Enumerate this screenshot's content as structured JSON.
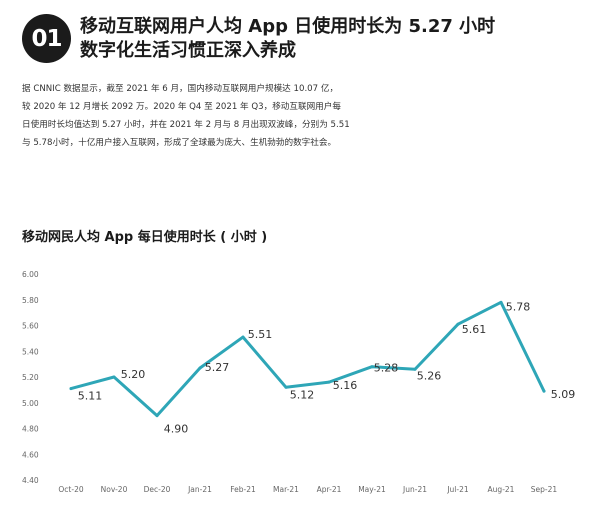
{
  "section": {
    "number": "01",
    "headline_line1": "移动互联网用户人均 App 日使用时长为 5.27 小时",
    "headline_line2": "数字化生活习惯正深入养成"
  },
  "paragraph": {
    "lines": [
      "据 CNNIC 数据显示，截至 2021 年 6 月，国内移动互联网用户规模达 10.07 亿，",
      "较 2020 年 12 月增长 2092 万。2020 年 Q4 至 2021 年 Q3，移动互联网用户每",
      "日使用时长均值达到 5.27 小时，并在 2021 年 2 月与 8 月出现双波峰，分别为 5.51",
      "与 5.78小时，十亿用户接入互联网，形成了全球最为庞大、生机勃勃的数字社会。"
    ]
  },
  "chart_data": {
    "type": "line",
    "title": "移动网民人均 App 每日使用时长 ( 小时 )",
    "xlabel": "",
    "ylabel": "",
    "categories": [
      "Oct-20",
      "Nov-20",
      "Dec-20",
      "Jan-21",
      "Feb-21",
      "Mar-21",
      "Apr-21",
      "May-21",
      "Jun-21",
      "Jul-21",
      "Aug-21",
      "Sep-21"
    ],
    "series": [
      {
        "values": [
          5.11,
          5.2,
          4.9,
          5.27,
          5.51,
          5.12,
          5.16,
          5.28,
          5.26,
          5.61,
          5.78,
          5.09
        ],
        "data_labels": [
          "5.11",
          "5.20",
          "4.90",
          "5.27",
          "5.51",
          "5.12",
          "5.16",
          "5.28",
          "5.26",
          "5.61",
          "5.78",
          "5.09"
        ]
      }
    ],
    "y_ticks": [
      "6.00",
      "5.80",
      "5.60",
      "5.40",
      "5.20",
      "5.00",
      "4.80",
      "4.60",
      "4.40"
    ],
    "ylim": [
      4.4,
      6.0
    ],
    "grid": false,
    "legend": "none",
    "line_color": "#2ea6b7"
  }
}
